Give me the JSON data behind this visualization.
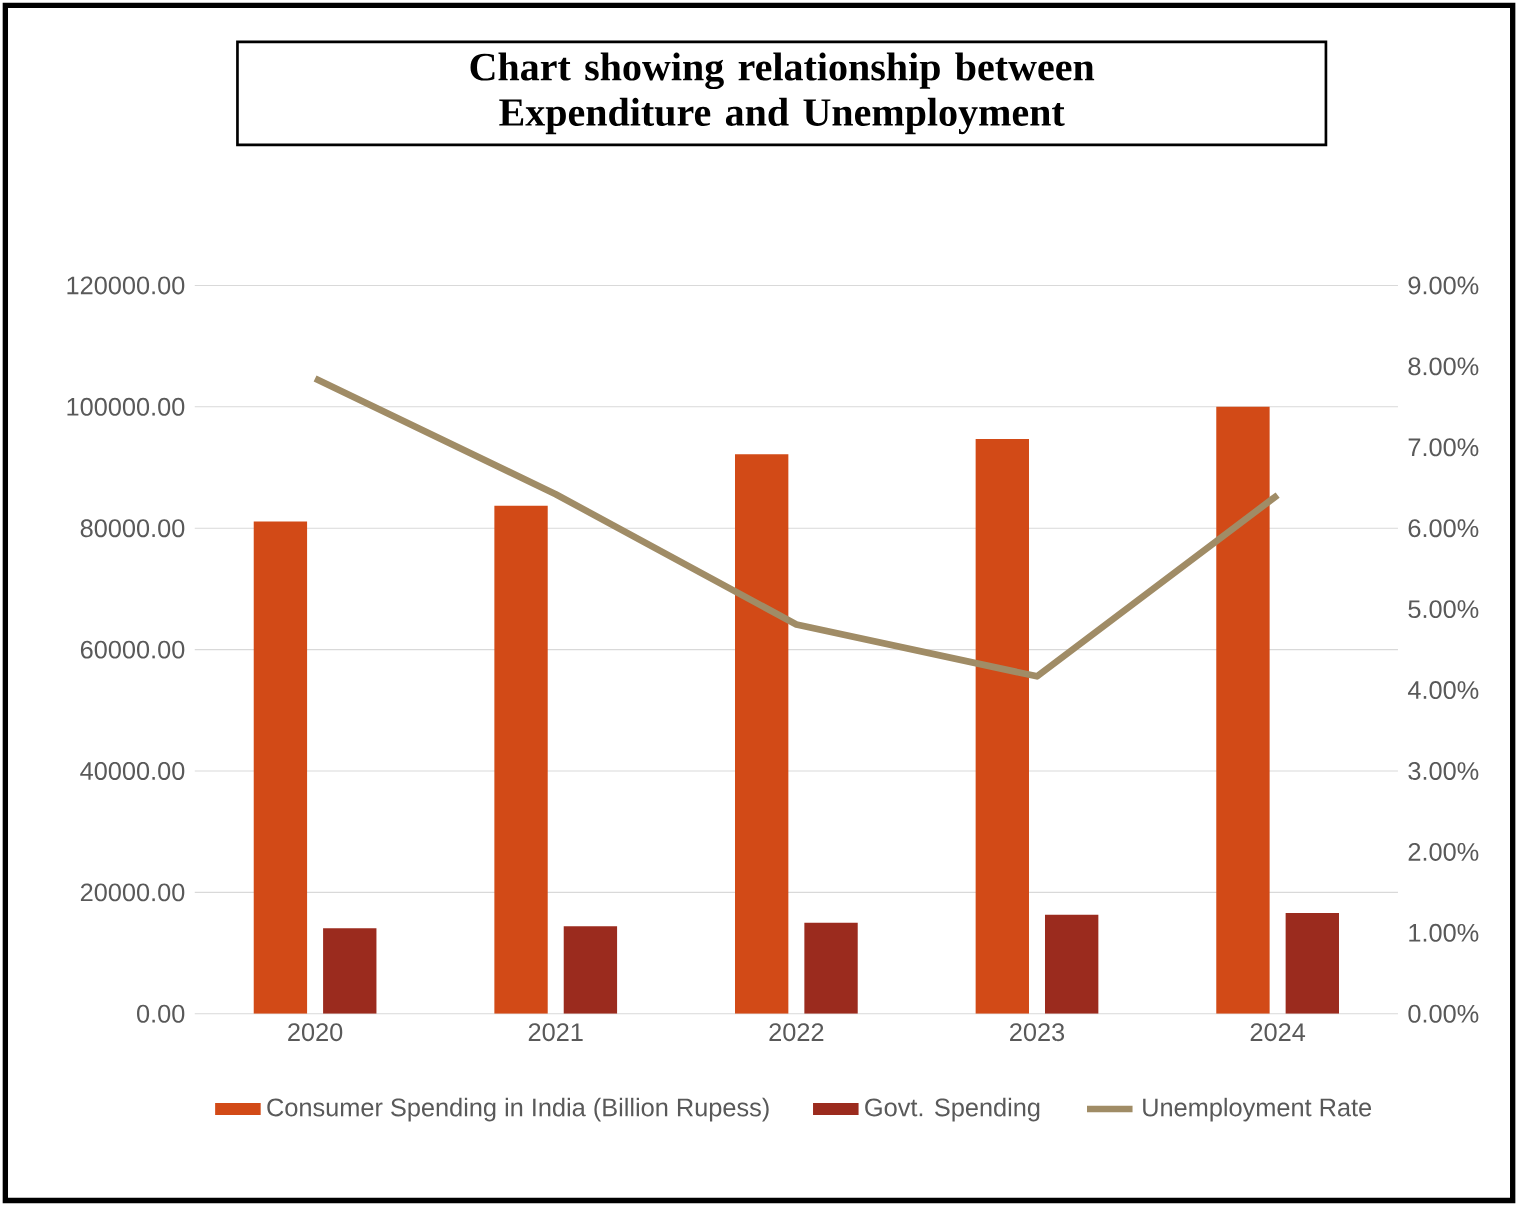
{
  "chart_data": {
    "type": "bar",
    "title": "Chart showing relationship between Expenditure and Unemployment",
    "categories": [
      "2020",
      "2021",
      "2022",
      "2023",
      "2024"
    ],
    "series": [
      {
        "name": "Consumer Spending in India (Billion Rupess)",
        "color": "#d24a17",
        "values": [
          81100,
          83700,
          92200,
          94700,
          100000
        ]
      },
      {
        "name": "Govt. Spending",
        "color": "#9b2b1e",
        "values": [
          14100,
          14400,
          15000,
          16300,
          16600
        ]
      },
      {
        "name": "Unemployment Rate",
        "type": "line",
        "axis": "y2",
        "color": "#a08c66",
        "values": [
          7.85,
          6.42,
          4.81,
          4.17,
          6.41
        ]
      }
    ],
    "ylim": [
      0,
      120000
    ],
    "yticks": [
      {
        "value": 0,
        "label": "0.00"
      },
      {
        "value": 20000,
        "label": "20000.00"
      },
      {
        "value": 40000,
        "label": "40000.00"
      },
      {
        "value": 60000,
        "label": "60000.00"
      },
      {
        "value": 80000,
        "label": "80000.00"
      },
      {
        "value": 100000,
        "label": "100000.00"
      },
      {
        "value": 120000,
        "label": "120000.00"
      }
    ],
    "y2lim": [
      0,
      9
    ],
    "y2ticks": [
      {
        "value": 0,
        "label": "0.00%"
      },
      {
        "value": 1,
        "label": "1.00%"
      },
      {
        "value": 2,
        "label": "2.00%"
      },
      {
        "value": 3,
        "label": "3.00%"
      },
      {
        "value": 4,
        "label": "4.00%"
      },
      {
        "value": 5,
        "label": "5.00%"
      },
      {
        "value": 6,
        "label": "6.00%"
      },
      {
        "value": 7,
        "label": "7.00%"
      },
      {
        "value": 8,
        "label": "8.00%"
      },
      {
        "value": 9,
        "label": "9.00%"
      }
    ],
    "grid": "y",
    "legend": "bottom",
    "marker": "none",
    "line_style": "solid"
  }
}
